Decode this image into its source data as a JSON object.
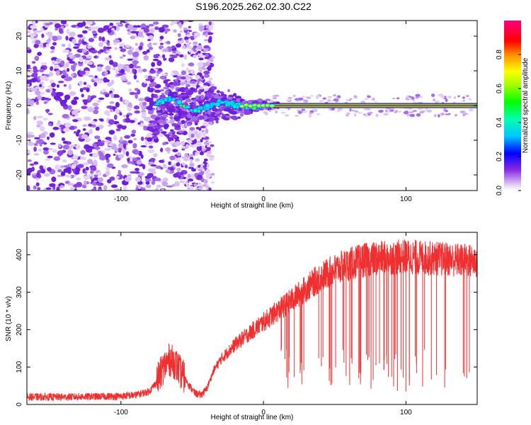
{
  "title": "S196.2025.262.02.30.C22",
  "chart_data": [
    {
      "type": "heatmap",
      "title": "S196.2025.262.02.30.C22",
      "xlabel": "Height of straight line (km)",
      "ylabel": "Frequency (Hz)",
      "xlim": [
        -166,
        150
      ],
      "ylim": [
        -24.5,
        24.5
      ],
      "xticks": [
        -100,
        0,
        100
      ],
      "yticks": [
        -20,
        -10,
        0,
        10,
        20
      ],
      "colorbar": {
        "label": "Normalized spectral amplitude",
        "range": [
          0,
          1
        ],
        "ticks": [
          0.0,
          0.2,
          0.4,
          0.6,
          0.8
        ]
      },
      "description_points": {
        "carrier_frequency_hz": 0,
        "carrier_start_km": 5,
        "carrier_end_km": 150,
        "noise_region_km": [
          -166,
          -38
        ]
      }
    },
    {
      "type": "line",
      "xlabel": "Height of straight line (km)",
      "ylabel": "SNR (10 * v/v)",
      "xlim": [
        -166,
        150
      ],
      "ylim": [
        0,
        460
      ],
      "xticks": [
        -100,
        0,
        100
      ],
      "yticks": [
        0,
        100,
        200,
        300,
        400
      ],
      "series": [
        {
          "name": "SNR",
          "color": "#f03030",
          "x": [
            -166,
            -140,
            -100,
            -90,
            -80,
            -75,
            -70,
            -66,
            -62,
            -58,
            -55,
            -52,
            -48,
            -44,
            -40,
            -35,
            -30,
            -25,
            -20,
            -15,
            -10,
            -5,
            0,
            5,
            10,
            15,
            20,
            25,
            30,
            35,
            40,
            45,
            50,
            55,
            60,
            65,
            70,
            80,
            90,
            100,
            110,
            120,
            130,
            140,
            150
          ],
          "values": [
            20,
            20,
            22,
            25,
            35,
            60,
            100,
            120,
            110,
            85,
            70,
            50,
            30,
            25,
            40,
            90,
            120,
            140,
            160,
            175,
            190,
            205,
            220,
            235,
            250,
            265,
            280,
            295,
            310,
            325,
            340,
            350,
            360,
            368,
            375,
            380,
            385,
            390,
            392,
            395,
            392,
            390,
            388,
            385,
            383
          ]
        }
      ]
    }
  ]
}
